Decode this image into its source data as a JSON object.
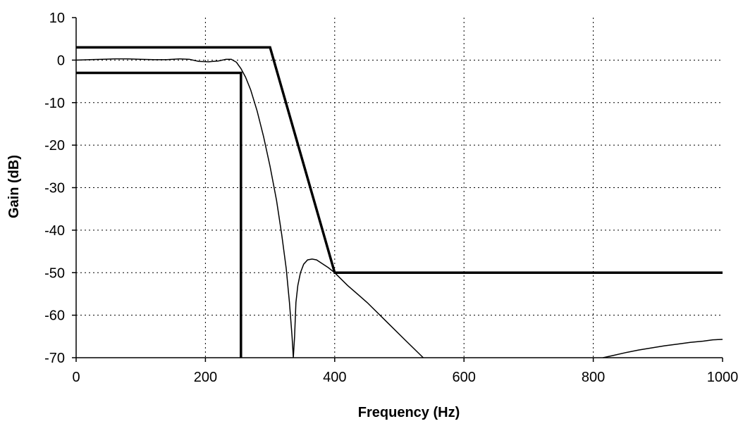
{
  "chart_data": {
    "type": "line",
    "title": "",
    "xlabel": "Frequency (Hz)",
    "ylabel": "Gain (dB)",
    "xlim": [
      0,
      1000
    ],
    "ylim": [
      -70,
      10
    ],
    "xticks": [
      0,
      200,
      400,
      600,
      800,
      1000
    ],
    "yticks": [
      10,
      0,
      -10,
      -20,
      -30,
      -40,
      -50,
      -60,
      -70
    ],
    "grid": "dotted",
    "legend": "none",
    "series": [
      {
        "role": "upper-spec-mask",
        "style": "thick",
        "points": [
          [
            0,
            3
          ],
          [
            300,
            3
          ],
          [
            400,
            -50
          ],
          [
            1000,
            -50
          ]
        ]
      },
      {
        "role": "lower-spec-mask",
        "style": "thick",
        "points": [
          [
            0,
            -3
          ],
          [
            255,
            -3
          ],
          [
            255,
            -70
          ]
        ]
      },
      {
        "role": "filter-response",
        "style": "thin",
        "points": [
          [
            0,
            0
          ],
          [
            20,
            0.1
          ],
          [
            40,
            0.2
          ],
          [
            60,
            0.3
          ],
          [
            80,
            0.3
          ],
          [
            100,
            0.2
          ],
          [
            120,
            0.1
          ],
          [
            140,
            0.1
          ],
          [
            160,
            0.3
          ],
          [
            175,
            0.2
          ],
          [
            190,
            -0.3
          ],
          [
            205,
            -0.4
          ],
          [
            220,
            -0.2
          ],
          [
            232,
            0.2
          ],
          [
            240,
            0.2
          ],
          [
            248,
            -0.5
          ],
          [
            255,
            -2
          ],
          [
            262,
            -4
          ],
          [
            270,
            -7
          ],
          [
            280,
            -12
          ],
          [
            290,
            -18
          ],
          [
            300,
            -25
          ],
          [
            310,
            -33
          ],
          [
            318,
            -41
          ],
          [
            325,
            -49
          ],
          [
            330,
            -57
          ],
          [
            334,
            -65
          ],
          [
            336,
            -70
          ],
          [
            338,
            -65
          ],
          [
            340,
            -57
          ],
          [
            343,
            -53
          ],
          [
            347,
            -50
          ],
          [
            352,
            -48
          ],
          [
            358,
            -47
          ],
          [
            365,
            -46.8
          ],
          [
            372,
            -47
          ],
          [
            380,
            -47.8
          ],
          [
            390,
            -48.8
          ],
          [
            400,
            -50
          ],
          [
            420,
            -53
          ],
          [
            450,
            -57
          ],
          [
            480,
            -61.5
          ],
          [
            510,
            -66
          ],
          [
            537,
            -70
          ]
        ]
      },
      {
        "role": "filter-response-tail",
        "style": "thin",
        "points": [
          [
            815,
            -70
          ],
          [
            830,
            -69.5
          ],
          [
            850,
            -68.8
          ],
          [
            870,
            -68.2
          ],
          [
            890,
            -67.7
          ],
          [
            910,
            -67.2
          ],
          [
            930,
            -66.8
          ],
          [
            950,
            -66.4
          ],
          [
            970,
            -66.1
          ],
          [
            985,
            -65.8
          ],
          [
            1000,
            -65.7
          ]
        ]
      }
    ]
  }
}
